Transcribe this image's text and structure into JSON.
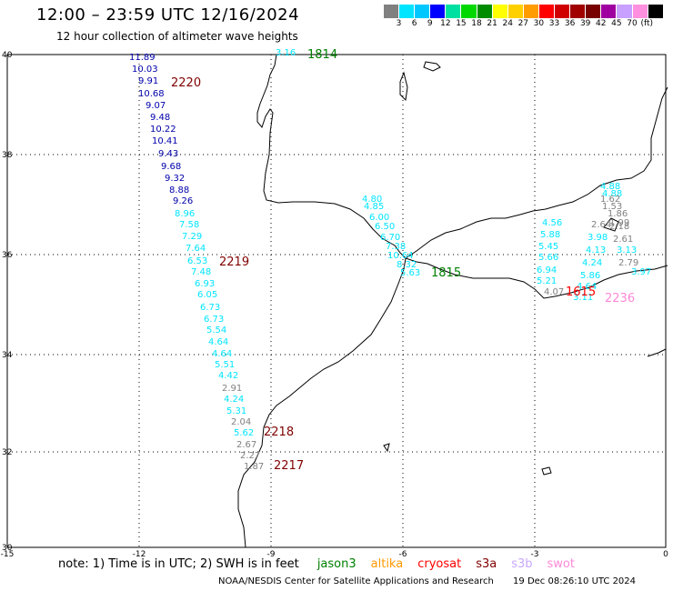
{
  "header": {
    "title": "12:00 – 23:59 UTC 12/16/2024",
    "subtitle": "12 hour collection of altimeter wave heights"
  },
  "legend": {
    "colors": [
      "#808080",
      "#00e5ff",
      "#00c8ff",
      "#0000ff",
      "#00e0a0",
      "#00d800",
      "#008c00",
      "#ffff00",
      "#ffd000",
      "#ff9c00",
      "#ff0000",
      "#d00000",
      "#a00000",
      "#780000",
      "#a000a0",
      "#c8a0ff",
      "#ff90e0",
      "#000000"
    ],
    "ticks": [
      "3",
      "6",
      "9",
      "12",
      "15",
      "18",
      "21",
      "24",
      "27",
      "30",
      "33",
      "36",
      "39",
      "42",
      "45",
      "70"
    ],
    "unit": "(ft)"
  },
  "map": {
    "lat_labels": [
      "40",
      "38",
      "36",
      "34",
      "32",
      "30"
    ],
    "lon_labels": [
      "-15",
      "-12",
      "-9",
      "-6",
      "-3",
      "0"
    ],
    "time_labels": [
      {
        "text": "1814",
        "color": "#008000"
      },
      {
        "text": "2220",
        "color": "#800000"
      },
      {
        "text": "2219",
        "color": "#800000"
      },
      {
        "text": "1815",
        "color": "#008000"
      },
      {
        "text": "2218",
        "color": "#800000"
      },
      {
        "text": "2217",
        "color": "#800000"
      },
      {
        "text": "1615",
        "color": "#ff0000"
      },
      {
        "text": "2236",
        "color": "#ff88d8"
      }
    ],
    "tracks": [
      {
        "color": "#00e5ff",
        "values": [
          "3.16"
        ]
      },
      {
        "color": "#0000aa",
        "values": [
          "11.89",
          "10.03",
          "9.91",
          "10.68",
          "9.07",
          "9.48",
          "10.22",
          "10.41",
          "9.43",
          "9.68",
          "9.32",
          "8.88",
          "9.26"
        ]
      },
      {
        "color": "#00e5ff",
        "values": [
          "8.96",
          "7.58",
          "7.29",
          "7.64",
          "6.53",
          "7.48",
          "6.93",
          "6.05",
          "6.73",
          "6.73",
          "5.54",
          "4.64",
          "4.64",
          "5.51",
          "4.42"
        ]
      },
      {
        "color": "#808080",
        "values": [
          "2.91"
        ]
      },
      {
        "color": "#00e5ff",
        "values": [
          "4.24",
          "5.31"
        ]
      },
      {
        "color": "#808080",
        "values": [
          "2.04"
        ]
      },
      {
        "color": "#00e5ff",
        "values": [
          "5.62"
        ]
      },
      {
        "color": "#808080",
        "values": [
          "2.67",
          "2.27",
          "1.87"
        ]
      },
      {
        "color": "#00e5ff",
        "values": [
          "4.80",
          "4.85",
          "6.00",
          "6.50",
          "6.70",
          "7.38",
          "10.64",
          "8.32",
          "5.63"
        ]
      },
      {
        "color": "#00e5ff",
        "values": [
          "4.56",
          "5.88",
          "5.45",
          "5.66",
          "6.94",
          "5.21"
        ]
      },
      {
        "color": "#808080",
        "values": [
          "4.07"
        ]
      },
      {
        "color": "#00e5ff",
        "values": [
          "4.88",
          "4.88"
        ]
      },
      {
        "color": "#808080",
        "values": [
          "1.62",
          "1.53",
          "1.86",
          "1.99",
          "2.64",
          "2.18",
          "2.61"
        ]
      },
      {
        "color": "#00e5ff",
        "values": [
          "3.98",
          "4.13",
          "3.13",
          "4.24"
        ]
      },
      {
        "color": "#808080",
        "values": [
          "2.79"
        ]
      },
      {
        "color": "#00e5ff",
        "values": [
          "5.86",
          "4.64",
          "3.11",
          "3.97"
        ]
      }
    ]
  },
  "note": {
    "text": "note:  1) Time is in UTC; 2) SWH is in feet",
    "satellites": [
      {
        "name": "jason3",
        "color": "#008000"
      },
      {
        "name": "altika",
        "color": "#ff9900"
      },
      {
        "name": "cryosat",
        "color": "#ff0000"
      },
      {
        "name": "s3a",
        "color": "#800000"
      },
      {
        "name": "s3b",
        "color": "#c8a8ff"
      },
      {
        "name": "swot",
        "color": "#ff88d8"
      }
    ]
  },
  "footer": {
    "source": "NOAA/NESDIS Center for Satellite Applications and Research",
    "timestamp": "19 Dec 08:26:10 UTC 2024"
  }
}
